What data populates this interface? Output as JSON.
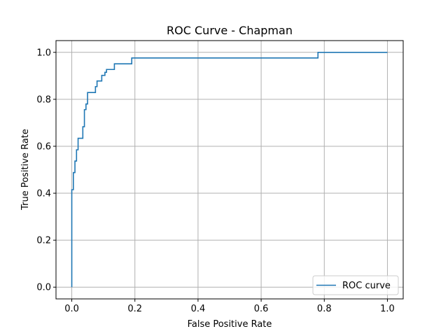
{
  "chart_data": {
    "type": "line",
    "title": "ROC Curve - Chapman",
    "xlabel": "False Positive Rate",
    "ylabel": "True Positive Rate",
    "xlim": [
      -0.05,
      1.05
    ],
    "ylim": [
      -0.05,
      1.05
    ],
    "xticks": [
      0.0,
      0.2,
      0.4,
      0.6,
      0.8,
      1.0
    ],
    "xtick_labels": [
      "0.0",
      "0.2",
      "0.4",
      "0.6",
      "0.8",
      "1.0"
    ],
    "yticks": [
      0.0,
      0.2,
      0.4,
      0.6,
      0.8,
      1.0
    ],
    "ytick_labels": [
      "0.0",
      "0.2",
      "0.4",
      "0.6",
      "0.8",
      "1.0"
    ],
    "grid": true,
    "legend_position": "lower-right",
    "series": [
      {
        "name": "ROC curve",
        "color": "#1f77b4",
        "step": true,
        "x": [
          0.0,
          0.0,
          0.005,
          0.01,
          0.015,
          0.02,
          0.025,
          0.035,
          0.04,
          0.045,
          0.05,
          0.055,
          0.075,
          0.08,
          0.09,
          0.095,
          0.1,
          0.105,
          0.11,
          0.12,
          0.135,
          0.19,
          0.78,
          1.0
        ],
        "y": [
          0.0,
          0.415,
          0.488,
          0.537,
          0.585,
          0.634,
          0.634,
          0.683,
          0.756,
          0.78,
          0.829,
          0.829,
          0.854,
          0.878,
          0.878,
          0.902,
          0.902,
          0.915,
          0.927,
          0.927,
          0.951,
          0.976,
          1.0,
          1.0
        ]
      }
    ]
  }
}
